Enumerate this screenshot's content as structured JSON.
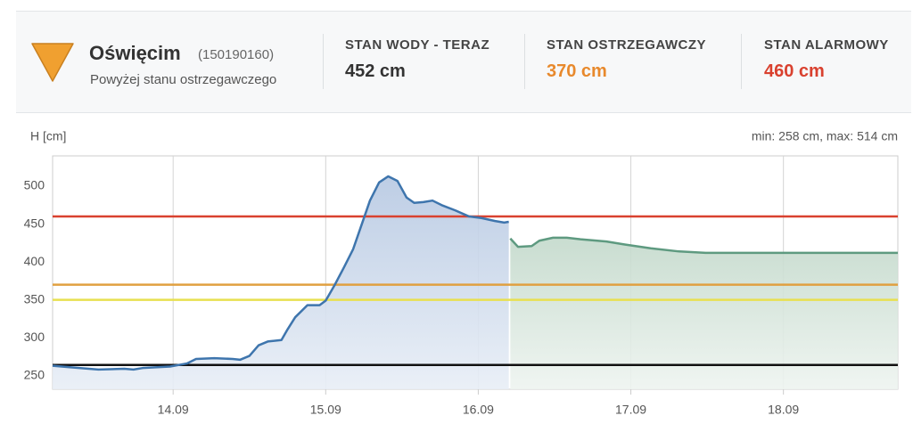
{
  "header": {
    "station": "Oświęcim",
    "code": "(150190160)",
    "status": "Powyżej stanu ostrzegawczego",
    "stats": [
      {
        "label": "STAN WODY - TERAZ",
        "value": "452 cm",
        "color": "#333333"
      },
      {
        "label": "STAN OSTRZEGAWCZY",
        "value": "370 cm",
        "color": "#e8892c"
      },
      {
        "label": "STAN ALARMOWY",
        "value": "460 cm",
        "color": "#d9412f"
      }
    ]
  },
  "chart_data": {
    "type": "line",
    "y_label": "H [cm]",
    "note": "min: 258 cm, max: 514 cm",
    "x": [
      13.21,
      13.33,
      13.51,
      13.68,
      13.74,
      13.8,
      13.98,
      14.09,
      14.15,
      14.27,
      14.39,
      14.44,
      14.5,
      14.56,
      14.62,
      14.71,
      14.75,
      14.8,
      14.88,
      14.96,
      15.0,
      15.06,
      15.12,
      15.18,
      15.23,
      15.29,
      15.35,
      15.41,
      15.47,
      15.53,
      15.58,
      15.64,
      15.7,
      15.76,
      15.85,
      15.94,
      16.02,
      16.11,
      16.17,
      16.2,
      16.21,
      16.26,
      16.35,
      16.4,
      16.49,
      16.58,
      16.67,
      16.84,
      16.96,
      17.13,
      17.31,
      17.49,
      17.72,
      18.13,
      18.75
    ],
    "series": [
      {
        "color": "#3e75ad",
        "fill": "#c5d4e8",
        "values": [
          263,
          261,
          258,
          259,
          258,
          260,
          262,
          266,
          272,
          273,
          272,
          271,
          276,
          290,
          295,
          297,
          311,
          327,
          343,
          343,
          349,
          370,
          393,
          417,
          446,
          481,
          505,
          513,
          507,
          485,
          478,
          479,
          481,
          475,
          468,
          460,
          458,
          454,
          452,
          453,
          null,
          null,
          null,
          null,
          null,
          null,
          null,
          null,
          null,
          null,
          null,
          null,
          null,
          null,
          null
        ]
      },
      {
        "color": "#5e9a80",
        "fill": "#d3e3d9",
        "values": [
          null,
          null,
          null,
          null,
          null,
          null,
          null,
          null,
          null,
          null,
          null,
          null,
          null,
          null,
          null,
          null,
          null,
          null,
          null,
          null,
          null,
          null,
          null,
          null,
          null,
          null,
          null,
          null,
          null,
          null,
          null,
          null,
          null,
          null,
          null,
          null,
          null,
          null,
          null,
          null,
          431,
          420,
          421,
          428,
          432,
          432,
          430,
          427,
          423,
          418,
          414,
          412,
          412,
          412,
          412
        ]
      }
    ],
    "hlines": [
      {
        "value": 460,
        "color": "#d9412f"
      },
      {
        "value": 370,
        "color": "#e0a040"
      },
      {
        "value": 350,
        "color": "#e8e050"
      },
      {
        "value": 264,
        "color": "#111111"
      }
    ],
    "xlim": [
      13.21,
      18.75
    ],
    "ylim": [
      232,
      540
    ],
    "xticks": [
      {
        "value": 14,
        "label": "14.09"
      },
      {
        "value": 15,
        "label": "15.09"
      },
      {
        "value": 16,
        "label": "16.09"
      },
      {
        "value": 17,
        "label": "17.09"
      },
      {
        "value": 18,
        "label": "18.09"
      }
    ],
    "yticks": [
      250,
      300,
      350,
      400,
      450,
      500
    ],
    "grid": true
  }
}
